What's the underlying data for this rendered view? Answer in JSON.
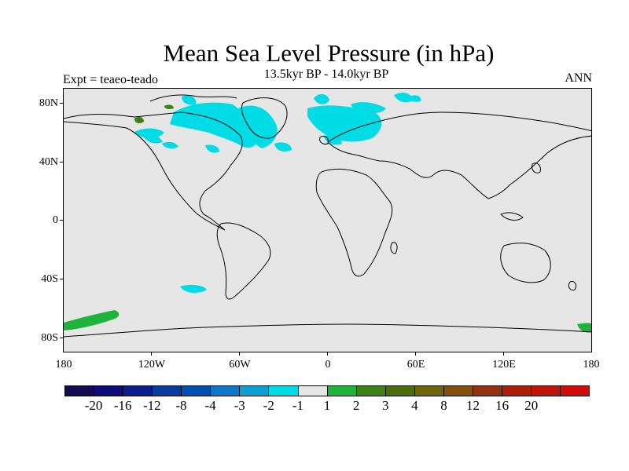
{
  "title": "Mean Sea Level Pressure (in hPa)",
  "subtitle": "13.5kyr BP - 14.0kyr BP",
  "expt_label": "Expt = teaeo-teado",
  "season": "ANN",
  "y_axis_labels": [
    "80N",
    "40N",
    "0",
    "40S",
    "80S"
  ],
  "x_axis_labels": [
    "180",
    "120W",
    "60W",
    "0",
    "60E",
    "120E",
    "180"
  ],
  "colorbar": {
    "colors": [
      "#140a50",
      "#0c0c78",
      "#0a1e8c",
      "#0a3ca0",
      "#0050b4",
      "#0a78c8",
      "#0aa0d2",
      "#00dce6",
      "#e6e6e6",
      "#1eb43c",
      "#3c8214",
      "#4a6e0a",
      "#6e640a",
      "#82500a",
      "#963214",
      "#aa1e0a",
      "#be140a",
      "#d20a0a"
    ],
    "labels": [
      "-20",
      "-16",
      "-12",
      "-8",
      "-4",
      "-3",
      "-2",
      "-1",
      "1",
      "2",
      "3",
      "4",
      "8",
      "12",
      "16",
      "20"
    ]
  },
  "colors": {
    "background": "#e6e6e6",
    "negative_small": "#00dce6",
    "positive_small": "#1eb43c",
    "positive_medium": "#3c8214"
  }
}
